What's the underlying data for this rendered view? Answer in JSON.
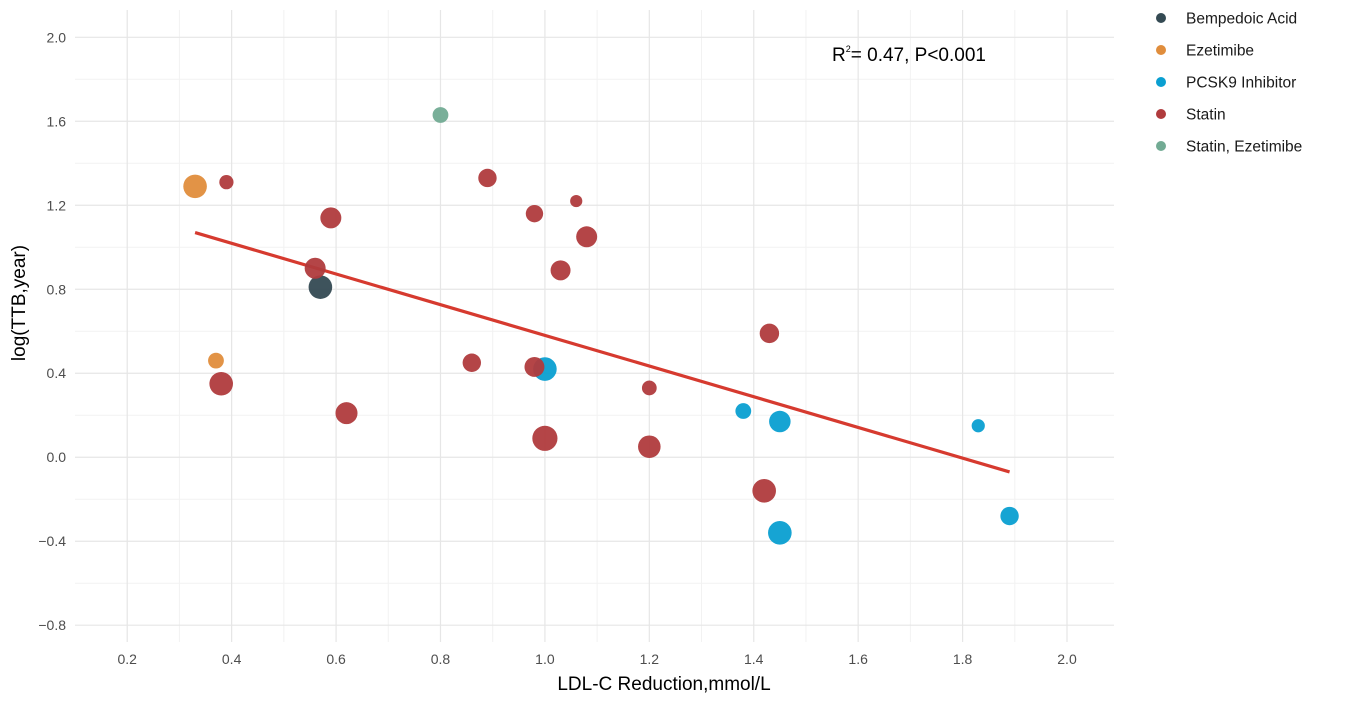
{
  "chart_data": {
    "type": "scatter",
    "title": "",
    "xlabel": "LDL-C Reduction,mmol/L",
    "ylabel": "log(TTB,year)",
    "xlim": [
      0.1,
      2.09
    ],
    "ylim": [
      -0.88,
      2.13
    ],
    "xticks": [
      0.2,
      0.4,
      0.6,
      0.8,
      1.0,
      1.2,
      1.4,
      1.6,
      1.8,
      2.0
    ],
    "xtick_labels": [
      "0.2",
      "0.4",
      "0.6",
      "0.8",
      "1.0",
      "1.2",
      "1.4",
      "1.6",
      "1.8",
      "2.0"
    ],
    "yticks": [
      -0.8,
      -0.4,
      0.0,
      0.4,
      0.8,
      1.2,
      1.6,
      2.0
    ],
    "ytick_labels": [
      "−0.8",
      "−0.4",
      "0.0",
      "0.4",
      "0.8",
      "1.2",
      "1.6",
      "2.0"
    ],
    "grid": true,
    "legend_position": "right",
    "annotation": {
      "r_label": "R",
      "r_sup": "2",
      "rest": "= 0.47, P<0.001"
    },
    "regression": {
      "x": [
        0.33,
        1.89
      ],
      "y": [
        1.07,
        -0.07
      ],
      "color": "#d63a2f"
    },
    "series": [
      {
        "name": "Bempedoic Acid",
        "color": "#344a53",
        "points": [
          {
            "x": 0.57,
            "y": 0.81,
            "size": 3
          }
        ]
      },
      {
        "name": "Ezetimibe",
        "color": "#e08d3c",
        "points": [
          {
            "x": 0.33,
            "y": 1.29,
            "size": 3
          },
          {
            "x": 0.37,
            "y": 0.46,
            "size": 1.5
          }
        ]
      },
      {
        "name": "PCSK9 Inhibitor",
        "color": "#0a9fd1",
        "points": [
          {
            "x": 1.0,
            "y": 0.42,
            "size": 3
          },
          {
            "x": 1.38,
            "y": 0.22,
            "size": 1.5
          },
          {
            "x": 1.45,
            "y": 0.17,
            "size": 2.6
          },
          {
            "x": 1.45,
            "y": -0.36,
            "size": 3
          },
          {
            "x": 1.83,
            "y": 0.15,
            "size": 1
          },
          {
            "x": 1.89,
            "y": -0.28,
            "size": 2
          }
        ]
      },
      {
        "name": "Statin",
        "color": "#b03b3d",
        "points": [
          {
            "x": 0.39,
            "y": 1.31,
            "size": 1.2
          },
          {
            "x": 0.59,
            "y": 1.14,
            "size": 2.5
          },
          {
            "x": 0.56,
            "y": 0.9,
            "size": 2.5
          },
          {
            "x": 0.38,
            "y": 0.35,
            "size": 3
          },
          {
            "x": 0.62,
            "y": 0.21,
            "size": 2.7
          },
          {
            "x": 0.86,
            "y": 0.45,
            "size": 2
          },
          {
            "x": 0.89,
            "y": 1.33,
            "size": 2
          },
          {
            "x": 0.98,
            "y": 1.16,
            "size": 1.8
          },
          {
            "x": 0.98,
            "y": 0.43,
            "size": 2.3
          },
          {
            "x": 1.0,
            "y": 0.09,
            "size": 3.3
          },
          {
            "x": 1.03,
            "y": 0.89,
            "size": 2.3
          },
          {
            "x": 1.06,
            "y": 1.22,
            "size": 0.8
          },
          {
            "x": 1.08,
            "y": 1.05,
            "size": 2.5
          },
          {
            "x": 1.2,
            "y": 0.33,
            "size": 1.3
          },
          {
            "x": 1.2,
            "y": 0.05,
            "size": 2.8
          },
          {
            "x": 1.42,
            "y": -0.16,
            "size": 3
          },
          {
            "x": 1.43,
            "y": 0.59,
            "size": 2.2
          }
        ]
      },
      {
        "name": "Statin, Ezetimibe",
        "color": "#72ab94",
        "points": [
          {
            "x": 0.8,
            "y": 1.63,
            "size": 1.5
          }
        ]
      }
    ]
  }
}
